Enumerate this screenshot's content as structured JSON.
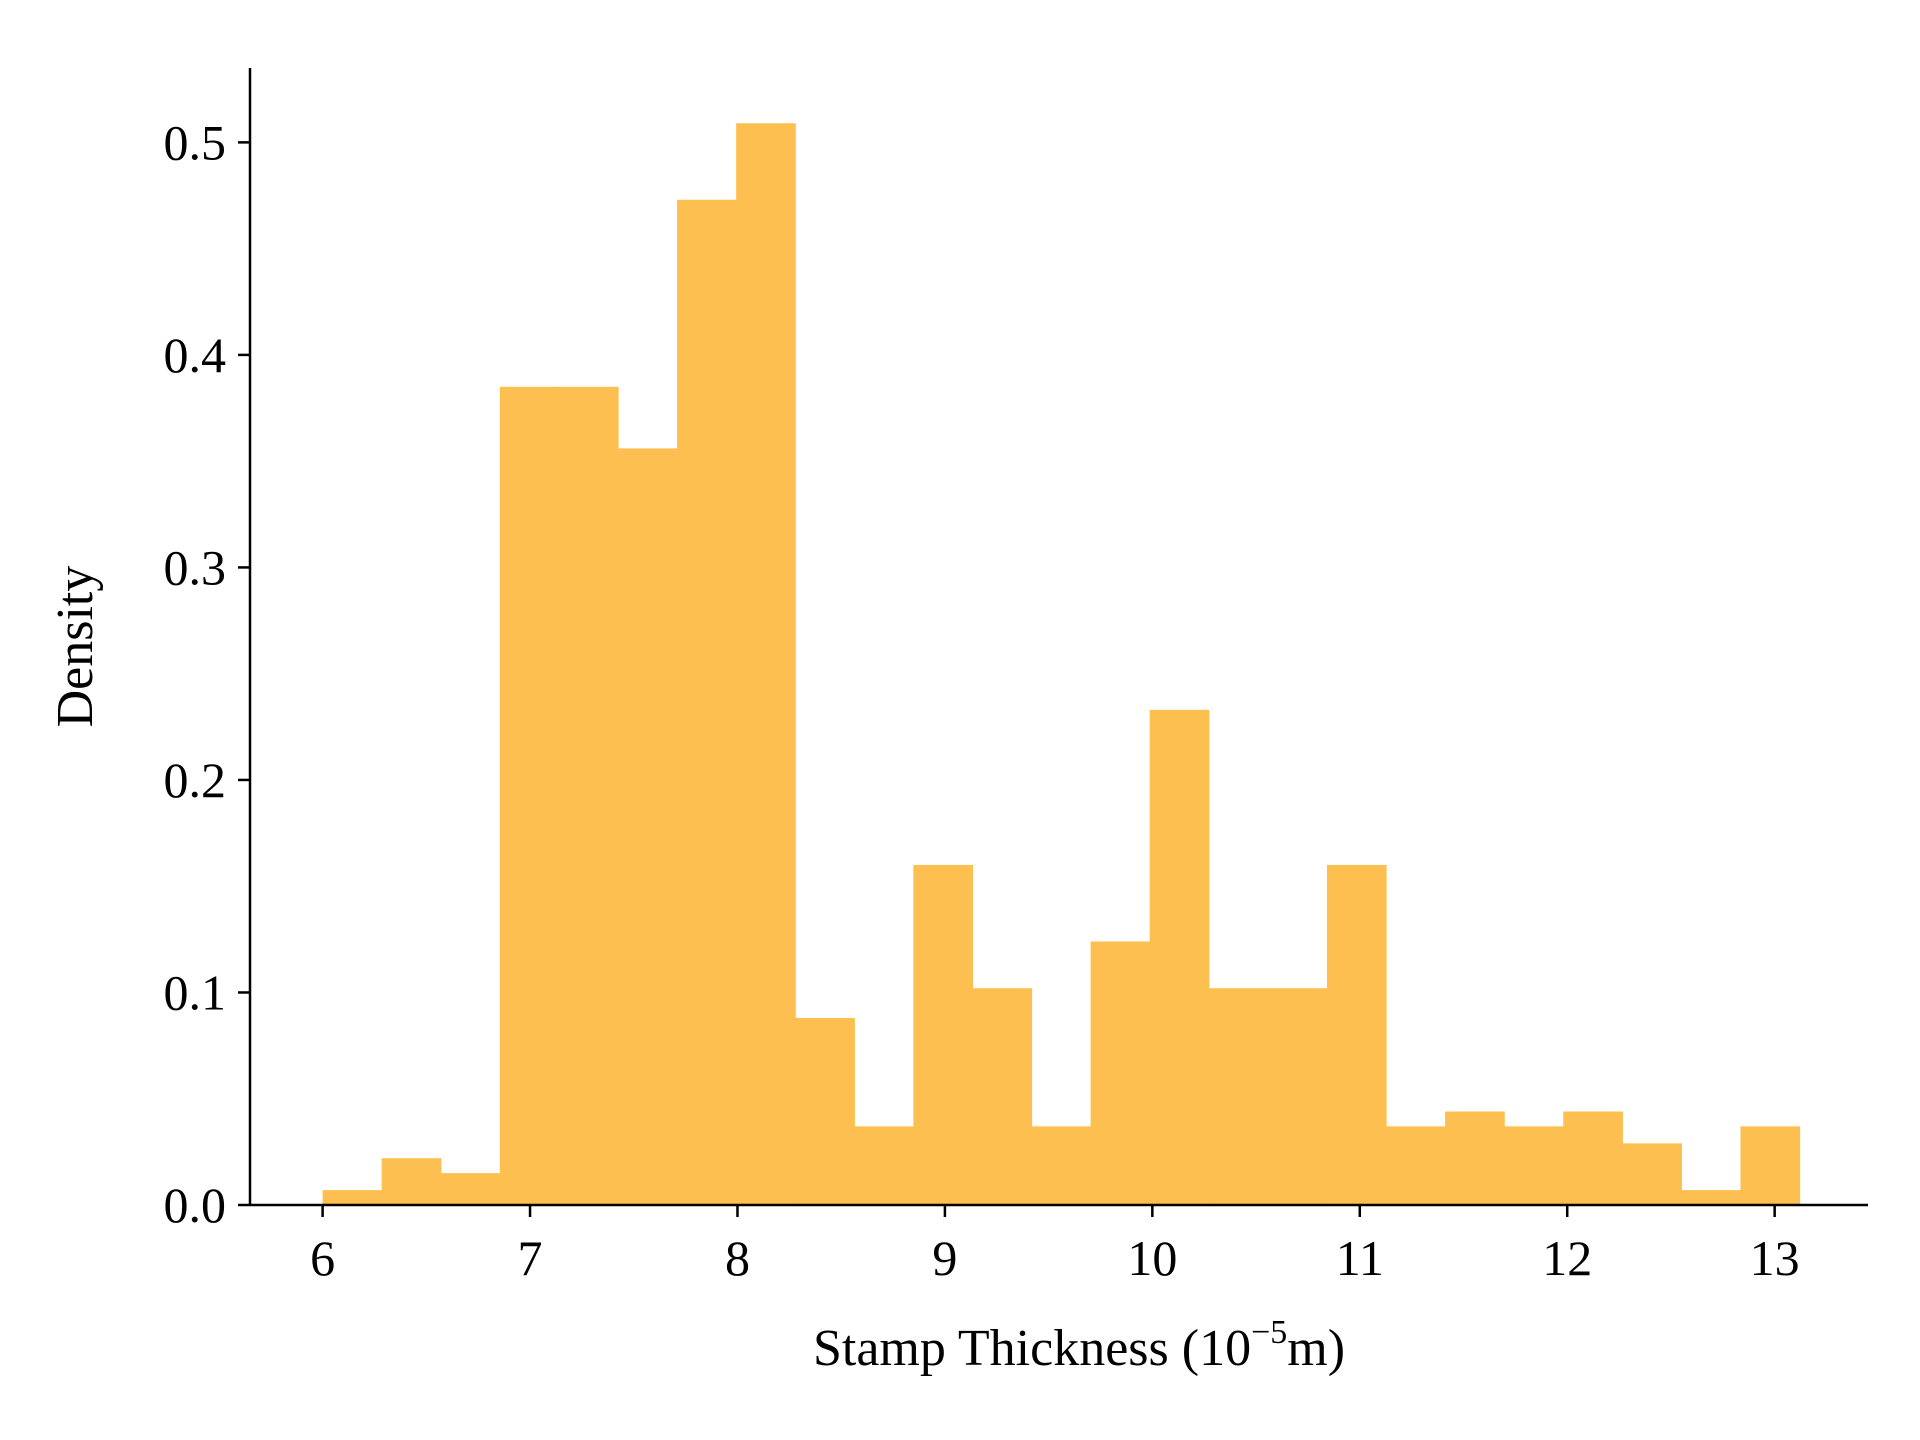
{
  "chart_data": {
    "type": "bar",
    "subtype": "histogram",
    "title": "",
    "xlabel": {
      "main": "Stamp Thickness (10",
      "exponent": "−5",
      "suffix": "m)"
    },
    "ylabel": "Density",
    "color": "#FDBF4F",
    "bin_start": 6.0,
    "bin_width": 0.2848,
    "values": [
      0.007,
      0.022,
      0.015,
      0.385,
      0.385,
      0.356,
      0.473,
      0.509,
      0.088,
      0.037,
      0.16,
      0.102,
      0.037,
      0.124,
      0.233,
      0.102,
      0.102,
      0.16,
      0.037,
      0.044,
      0.037,
      0.044,
      0.029,
      0.007,
      0.037
    ],
    "xlim": [
      5.65,
      13.45
    ],
    "ylim": [
      0,
      0.535
    ],
    "xticks": [
      6,
      7,
      8,
      9,
      10,
      11,
      12,
      13
    ],
    "xtick_labels": [
      "6",
      "7",
      "8",
      "9",
      "10",
      "11",
      "12",
      "13"
    ],
    "yticks": [
      0.0,
      0.1,
      0.2,
      0.3,
      0.4,
      0.5
    ],
    "ytick_labels": [
      "0.0",
      "0.1",
      "0.2",
      "0.3",
      "0.4",
      "0.5"
    ],
    "grid": false,
    "legend": "none"
  }
}
